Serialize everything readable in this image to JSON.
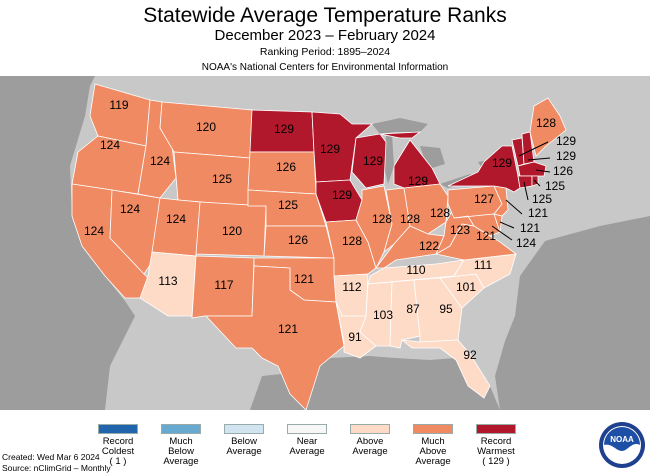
{
  "header": {
    "title": "Statewide Average Temperature Ranks",
    "period": "December 2023 – February 2024",
    "ranking_period": "Ranking Period: 1895–2024",
    "source": "NOAA's National Centers for Environmental Information"
  },
  "colors": {
    "record_coldest": "#2166ac",
    "much_below": "#67a9cf",
    "below": "#d1e5f0",
    "near": "#f7f7f7",
    "above": "#fddbc7",
    "much_above": "#ef8a62",
    "record_warmest": "#b2182b",
    "land_bg": "#c8c8c8",
    "water": "#9d9d9d"
  },
  "ranks": {
    "WA": "119",
    "OR": "124",
    "CA": "124",
    "NV": "124",
    "ID": "124",
    "MT": "120",
    "WY": "125",
    "UT": "124",
    "CO": "120",
    "AZ": "113",
    "NM": "117",
    "ND": "129",
    "SD": "126",
    "NE": "125",
    "KS": "126",
    "OK": "121",
    "TX": "121",
    "MN": "129",
    "IA": "129",
    "MO": "128",
    "AR": "112",
    "LA": "91",
    "WI": "129",
    "IL": "128",
    "MS": "103",
    "MI": "129",
    "IN": "128",
    "KY": "122",
    "TN": "110",
    "AL": "87",
    "OH": "128",
    "GA": "95",
    "FL": "92",
    "SC": "101",
    "NC": "111",
    "VA": "121",
    "WV": "123",
    "PA": "127",
    "NY": "129",
    "ME": "128",
    "VT": "129",
    "NH": "129",
    "MA": "126",
    "RI": "125",
    "CT": "125",
    "NJ": "121",
    "DE": "121",
    "MD": "124"
  },
  "legend": [
    {
      "label": "Record\nColdest\n( 1 )",
      "color": "#2166ac"
    },
    {
      "label": "Much\nBelow\nAverage",
      "color": "#67a9cf"
    },
    {
      "label": "Below\nAverage",
      "color": "#d1e5f0"
    },
    {
      "label": "Near\nAverage",
      "color": "#f7f7f7"
    },
    {
      "label": "Above\nAverage",
      "color": "#fddbc7"
    },
    {
      "label": "Much\nAbove\nAverage",
      "color": "#ef8a62"
    },
    {
      "label": "Record\nWarmest\n( 129 )",
      "color": "#b2182b"
    }
  ],
  "footer": {
    "created": "Created: Wed Mar  6 2024",
    "source": "Source: nClimGrid – Monthly"
  },
  "logo": {
    "text": "NOAA"
  }
}
